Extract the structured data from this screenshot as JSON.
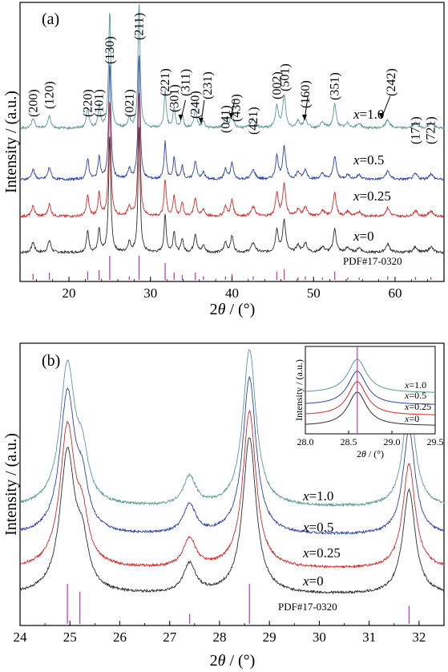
{
  "chart_data": [
    {
      "type": "line",
      "panel_label": "(a)",
      "xlabel": "2θ / (°)",
      "ylabel": "Intensity / (a.u.)",
      "xlim": [
        14,
        66
      ],
      "xticks": [
        20,
        30,
        40,
        50,
        60
      ],
      "y_ticks": "none",
      "series": [
        {
          "name": "x=0",
          "label_prefix": "x",
          "label_value": "=0",
          "color": "#2e2e2e",
          "offset": 0
        },
        {
          "name": "x=0.25",
          "label_prefix": "x",
          "label_value": "=0.25",
          "color": "#d42a2a",
          "offset": 1
        },
        {
          "name": "x=0.5",
          "label_prefix": "x",
          "label_value": "=0.5",
          "color": "#2b44a8",
          "offset": 2
        },
        {
          "name": "x=1.0",
          "label_prefix": "x",
          "label_value": "=1.0",
          "color": "#5a9a92",
          "offset": 3
        }
      ],
      "peaks": [
        {
          "pos": 15.6,
          "h": 0.22,
          "w": 0.22
        },
        {
          "pos": 17.6,
          "h": 0.26,
          "w": 0.22
        },
        {
          "pos": 22.3,
          "h": 0.45,
          "w": 0.18
        },
        {
          "pos": 23.7,
          "h": 0.5,
          "w": 0.16
        },
        {
          "pos": 25.0,
          "h": 2.5,
          "w": 0.16
        },
        {
          "pos": 27.4,
          "h": 0.22,
          "w": 0.2
        },
        {
          "pos": 28.6,
          "h": 2.7,
          "w": 0.15
        },
        {
          "pos": 31.8,
          "h": 0.8,
          "w": 0.16
        },
        {
          "pos": 32.9,
          "h": 0.45,
          "w": 0.16
        },
        {
          "pos": 33.9,
          "h": 0.3,
          "w": 0.16
        },
        {
          "pos": 35.5,
          "h": 0.4,
          "w": 0.2
        },
        {
          "pos": 36.5,
          "h": 0.15,
          "w": 0.2
        },
        {
          "pos": 39.2,
          "h": 0.22,
          "w": 0.2
        },
        {
          "pos": 40.0,
          "h": 0.35,
          "w": 0.2
        },
        {
          "pos": 42.6,
          "h": 0.2,
          "w": 0.3
        },
        {
          "pos": 45.5,
          "h": 0.5,
          "w": 0.2
        },
        {
          "pos": 46.4,
          "h": 0.7,
          "w": 0.22
        },
        {
          "pos": 48.1,
          "h": 0.15,
          "w": 0.25
        },
        {
          "pos": 49.0,
          "h": 0.2,
          "w": 0.25
        },
        {
          "pos": 51.1,
          "h": 0.12,
          "w": 0.3
        },
        {
          "pos": 52.6,
          "h": 0.5,
          "w": 0.22
        },
        {
          "pos": 54.2,
          "h": 0.1,
          "w": 0.3
        },
        {
          "pos": 55.6,
          "h": 0.1,
          "w": 0.3
        },
        {
          "pos": 59.1,
          "h": 0.18,
          "w": 0.3
        },
        {
          "pos": 62.5,
          "h": 0.12,
          "w": 0.3
        },
        {
          "pos": 64.4,
          "h": 0.12,
          "w": 0.3
        }
      ],
      "reference": {
        "name": "PDF#17-0320",
        "color": "#c040b0",
        "lines": [
          {
            "pos": 15.6,
            "h": 0.25
          },
          {
            "pos": 17.6,
            "h": 0.3
          },
          {
            "pos": 22.3,
            "h": 0.35
          },
          {
            "pos": 23.7,
            "h": 0.4
          },
          {
            "pos": 25.0,
            "h": 1.0
          },
          {
            "pos": 27.4,
            "h": 0.15
          },
          {
            "pos": 28.6,
            "h": 1.0
          },
          {
            "pos": 31.8,
            "h": 0.7
          },
          {
            "pos": 32.9,
            "h": 0.3
          },
          {
            "pos": 33.9,
            "h": 0.2
          },
          {
            "pos": 35.5,
            "h": 0.3
          },
          {
            "pos": 36.5,
            "h": 0.15
          },
          {
            "pos": 39.2,
            "h": 0.15
          },
          {
            "pos": 40.0,
            "h": 0.25
          },
          {
            "pos": 42.6,
            "h": 0.15
          },
          {
            "pos": 45.5,
            "h": 0.35
          },
          {
            "pos": 46.4,
            "h": 0.45
          },
          {
            "pos": 48.1,
            "h": 0.1
          },
          {
            "pos": 49.0,
            "h": 0.15
          },
          {
            "pos": 51.1,
            "h": 0.1
          },
          {
            "pos": 52.6,
            "h": 0.35
          },
          {
            "pos": 54.2,
            "h": 0.1
          },
          {
            "pos": 55.6,
            "h": 0.1
          },
          {
            "pos": 59.1,
            "h": 0.15
          },
          {
            "pos": 62.5,
            "h": 0.12
          },
          {
            "pos": 64.4,
            "h": 0.12
          }
        ]
      },
      "annotations": [
        {
          "text": "(200)",
          "x": 15.6,
          "rot": true
        },
        {
          "text": "(120)",
          "x": 17.6,
          "rot": true
        },
        {
          "text": "(220)",
          "x": 22.3,
          "rot": true
        },
        {
          "text": "(101)",
          "x": 23.7,
          "rot": true
        },
        {
          "text": "(130)",
          "x": 25.0,
          "rot": true
        },
        {
          "text": "(021)",
          "x": 27.4,
          "rot": true
        },
        {
          "text": "(211)",
          "x": 28.6,
          "rot": true
        },
        {
          "text": "(221)",
          "x": 31.8,
          "rot": true
        },
        {
          "text": "(301)",
          "x": 32.9,
          "rot": true
        },
        {
          "text": "(311)",
          "x": 34.3,
          "rot": true
        },
        {
          "text": "(240)",
          "x": 35.5,
          "rot": true
        },
        {
          "text": "(231)",
          "x": 37.0,
          "rot": true
        },
        {
          "text": "(041)",
          "x": 39.2,
          "rot": true
        },
        {
          "text": "(430)",
          "x": 40.5,
          "rot": true
        },
        {
          "text": "(421)",
          "x": 42.6,
          "rot": true
        },
        {
          "text": "(002)",
          "x": 45.5,
          "rot": true
        },
        {
          "text": "(501)",
          "x": 46.5,
          "rot": true
        },
        {
          "text": "(160)",
          "x": 49.0,
          "rot": true
        },
        {
          "text": "(351)",
          "x": 52.6,
          "rot": true
        },
        {
          "text": "(242)",
          "x": 59.5,
          "rot": true
        },
        {
          "text": "(171)",
          "x": 62.5,
          "rot": true
        },
        {
          "text": "(721)",
          "x": 64.4,
          "rot": true
        }
      ]
    },
    {
      "type": "line",
      "panel_label": "(b)",
      "xlabel": "2θ / (°)",
      "ylabel": "Intensity / (a.u.)",
      "xlim": [
        24,
        32.5
      ],
      "xticks": [
        24,
        25,
        26,
        27,
        28,
        29,
        30,
        31,
        32
      ],
      "series": [
        {
          "name": "x=0",
          "label_prefix": "x",
          "label_value": "=0",
          "color": "#2e2e2e",
          "offset": 0
        },
        {
          "name": "x=0.25",
          "label_prefix": "x",
          "label_value": "=0.25",
          "color": "#d42a2a",
          "offset": 1
        },
        {
          "name": "x=0.5",
          "label_prefix": "x",
          "label_value": "=0.5",
          "color": "#2b44a8",
          "offset": 2
        },
        {
          "name": "x=1.0",
          "label_prefix": "x",
          "label_value": "=1.0",
          "color": "#5a9a92",
          "offset": 3
        }
      ],
      "peaks": [
        {
          "pos": 24.95,
          "h": 1.2,
          "w": 0.18
        },
        {
          "pos": 25.25,
          "h": 0.35,
          "w": 0.14
        },
        {
          "pos": 27.4,
          "h": 0.25,
          "w": 0.15
        },
        {
          "pos": 28.6,
          "h": 1.35,
          "w": 0.16
        },
        {
          "pos": 31.8,
          "h": 0.9,
          "w": 0.15
        }
      ],
      "reference": {
        "name": "PDF#17-0320",
        "color": "#c040b0",
        "lines": [
          {
            "pos": 24.95,
            "h": 1.0
          },
          {
            "pos": 25.2,
            "h": 0.8
          },
          {
            "pos": 27.4,
            "h": 0.25
          },
          {
            "pos": 28.6,
            "h": 1.0
          },
          {
            "pos": 31.8,
            "h": 0.45
          }
        ]
      },
      "inset": {
        "xlabel": "2θ / (°)",
        "ylabel": "Intensity / (a.u.)",
        "xlim": [
          28.0,
          29.5
        ],
        "xticks": [
          28.0,
          28.5,
          29.0,
          29.5
        ],
        "peak_pos": 28.6,
        "ref_line": 28.6,
        "series_labels": [
          {
            "prefix": "x",
            "value": "=1.0"
          },
          {
            "prefix": "x",
            "value": "=0.5"
          },
          {
            "prefix": "x",
            "value": "=0.25"
          },
          {
            "prefix": "x",
            "value": "=0"
          }
        ]
      }
    }
  ]
}
